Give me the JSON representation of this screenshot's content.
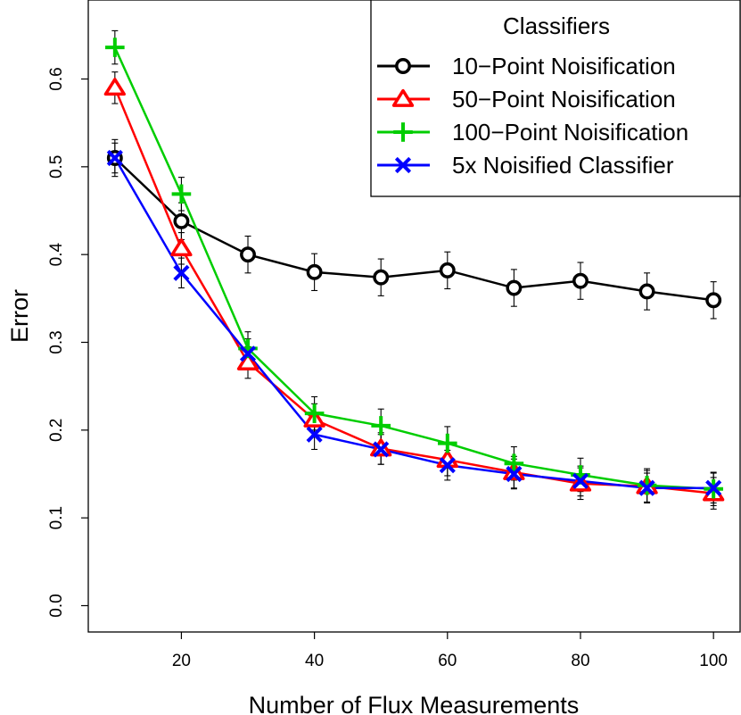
{
  "chart_data": {
    "type": "line",
    "title": "",
    "xlabel": "Number of Flux Measurements",
    "ylabel": "Error",
    "xlim": [
      6,
      104
    ],
    "ylim": [
      -0.03,
      0.69
    ],
    "x_ticks": [
      20,
      40,
      60,
      80,
      100
    ],
    "x_tick_labels": [
      "20",
      "40",
      "60",
      "80",
      "100"
    ],
    "y_ticks": [
      0.0,
      0.1,
      0.2,
      0.3,
      0.4,
      0.5,
      0.6
    ],
    "y_tick_labels": [
      "0.0",
      "0.1",
      "0.2",
      "0.3",
      "0.4",
      "0.5",
      "0.6"
    ],
    "grid": false,
    "legend": {
      "title": "Classifiers",
      "placement": "top-right"
    },
    "x": [
      10,
      20,
      30,
      40,
      50,
      60,
      70,
      80,
      90,
      100
    ],
    "series": [
      {
        "name": "10−Point Noisification",
        "color": "#000000",
        "marker": "circle",
        "values": [
          0.51,
          0.438,
          0.4,
          0.38,
          0.374,
          0.382,
          0.362,
          0.37,
          0.358,
          0.348
        ],
        "error": 0.021
      },
      {
        "name": "50−Point Noisification",
        "color": "#ff0000",
        "marker": "triangle",
        "values": [
          0.59,
          0.407,
          0.277,
          0.212,
          0.179,
          0.166,
          0.152,
          0.139,
          0.136,
          0.128
        ],
        "error": 0.018
      },
      {
        "name": "100−Point Noisification",
        "color": "#00cd00",
        "marker": "plus",
        "values": [
          0.636,
          0.469,
          0.293,
          0.219,
          0.205,
          0.185,
          0.162,
          0.149,
          0.137,
          0.133
        ],
        "error": 0.019
      },
      {
        "name": "5x Noisified Classifier",
        "color": "#0000ff",
        "marker": "x",
        "values": [
          0.51,
          0.379,
          0.287,
          0.195,
          0.178,
          0.16,
          0.15,
          0.142,
          0.134,
          0.134
        ],
        "error": 0.017
      }
    ]
  }
}
